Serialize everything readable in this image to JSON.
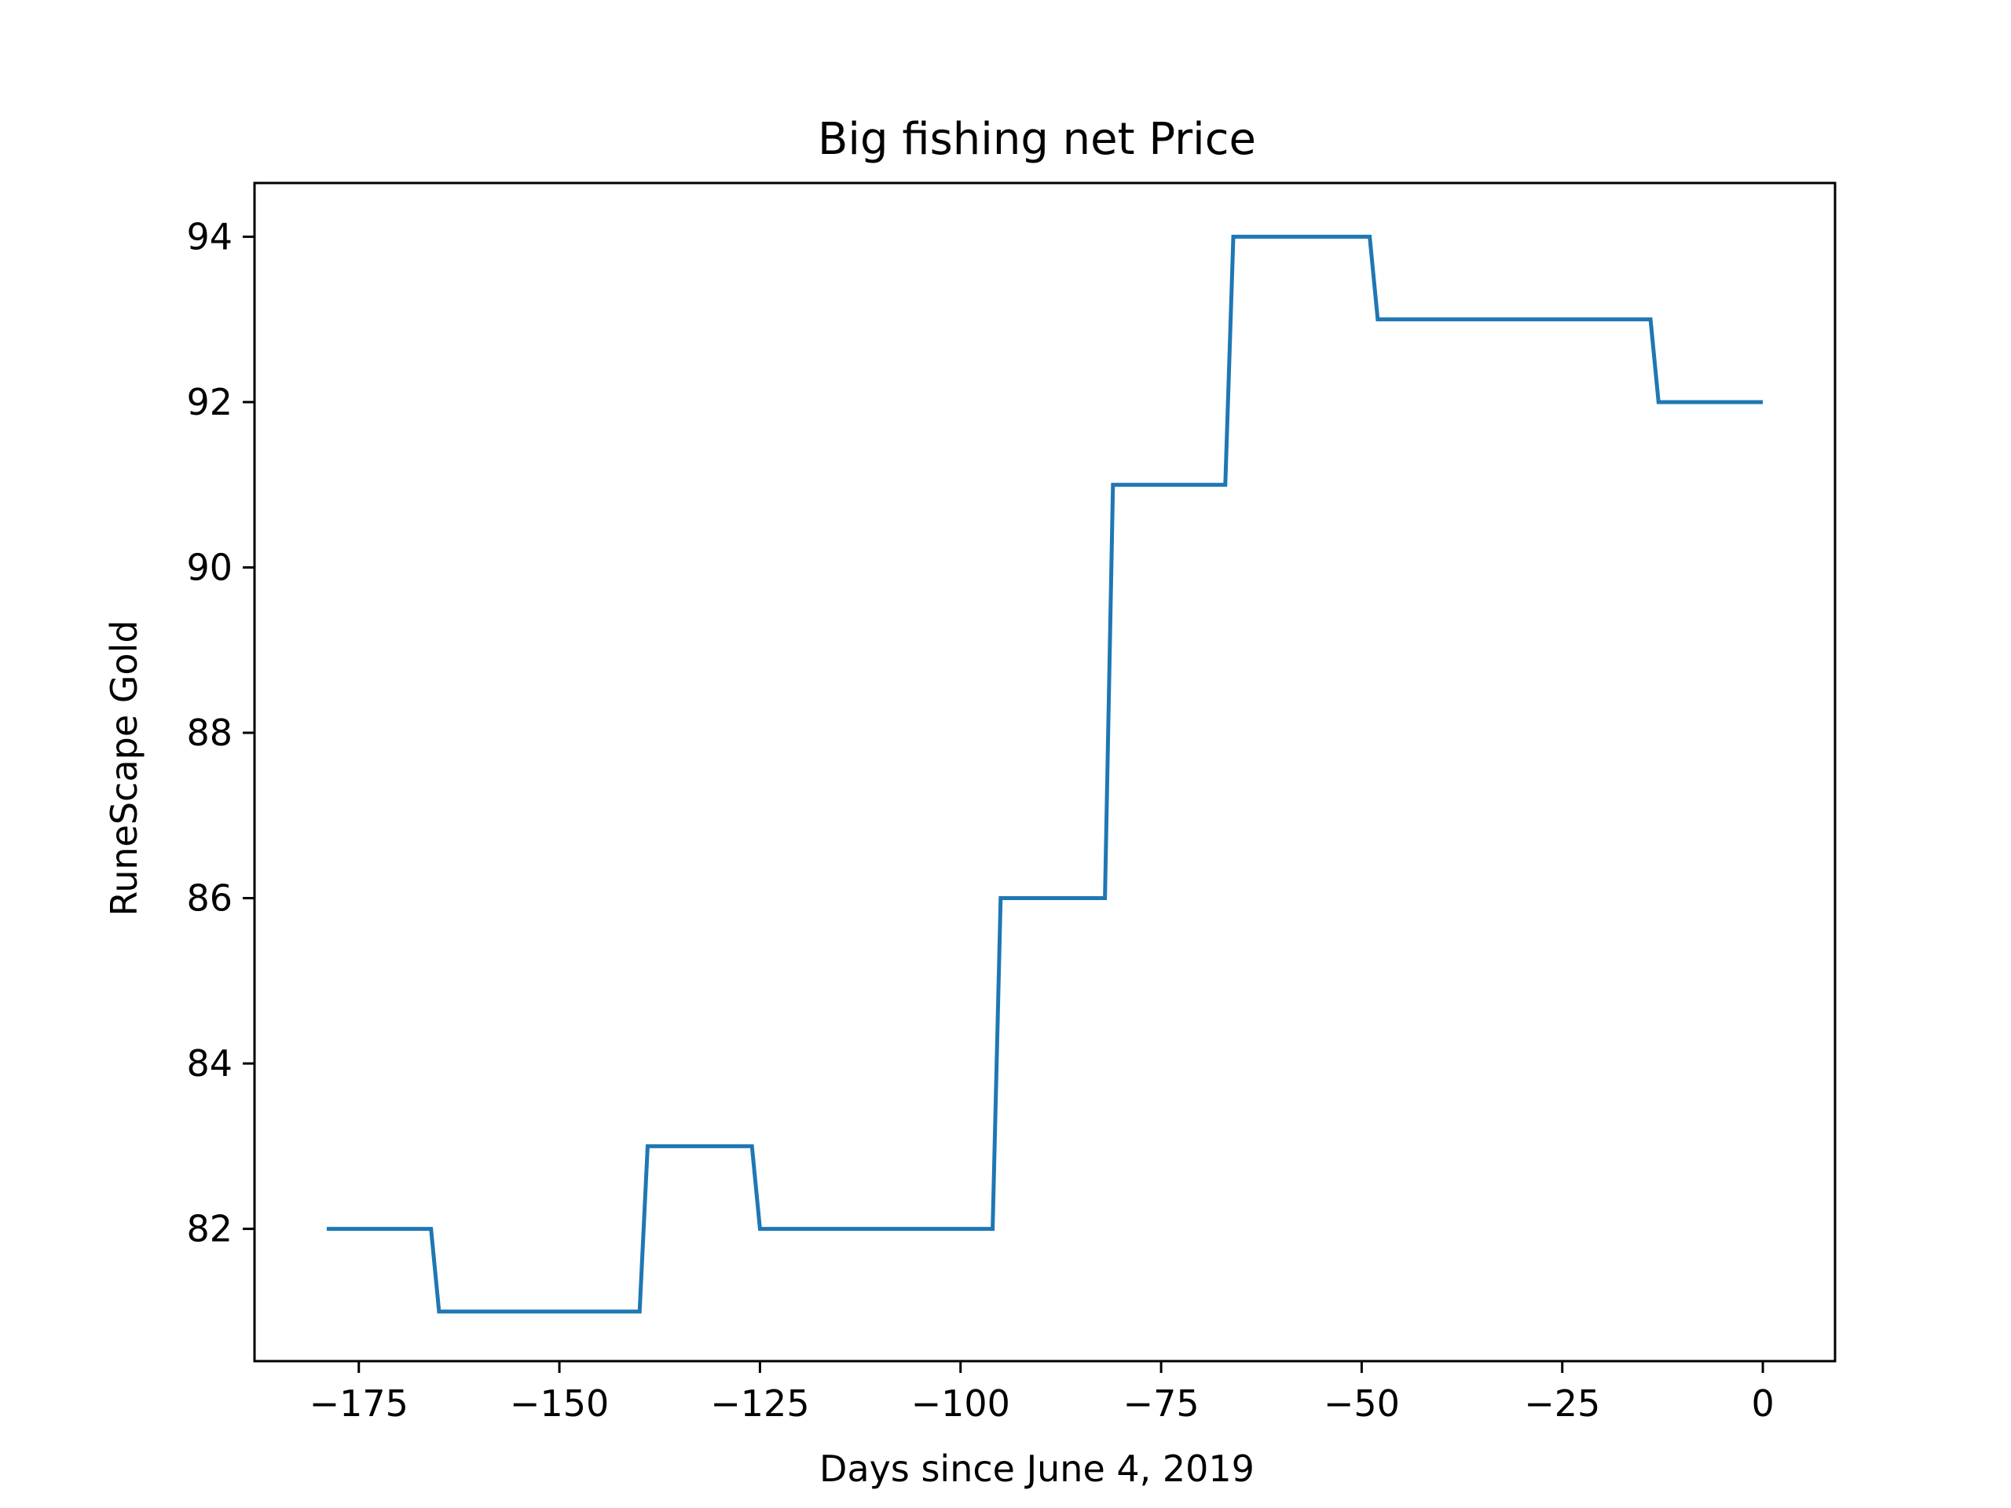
{
  "chart_data": {
    "type": "line",
    "title": "Big fishing net Price",
    "xlabel": "Days since June 4, 2019",
    "ylabel": "RuneScape Gold",
    "xlim": [
      -188,
      9
    ],
    "ylim": [
      80.4,
      94.65
    ],
    "x_ticks": [
      -175,
      -150,
      -125,
      -100,
      -75,
      -50,
      -25,
      0
    ],
    "x_tick_labels": [
      "−175",
      "−150",
      "−125",
      "−100",
      "−75",
      "−50",
      "−25",
      "0"
    ],
    "y_ticks": [
      82,
      84,
      86,
      88,
      90,
      92,
      94
    ],
    "y_tick_labels": [
      "82",
      "84",
      "86",
      "88",
      "90",
      "92",
      "94"
    ],
    "grid": false,
    "colors": {
      "line": "#1f77b4",
      "axes": "#000000",
      "background": "#ffffff"
    },
    "series": [
      {
        "x": [
          -179,
          -166,
          -165,
          -140,
          -139,
          -126,
          -125,
          -96,
          -95,
          -82,
          -81,
          -67,
          -66,
          -49,
          -48,
          -14,
          -13,
          0
        ],
        "y": [
          82,
          82,
          81,
          81,
          83,
          83,
          82,
          82,
          86,
          86,
          91,
          91,
          94,
          94,
          93,
          93,
          92,
          92
        ]
      }
    ]
  }
}
